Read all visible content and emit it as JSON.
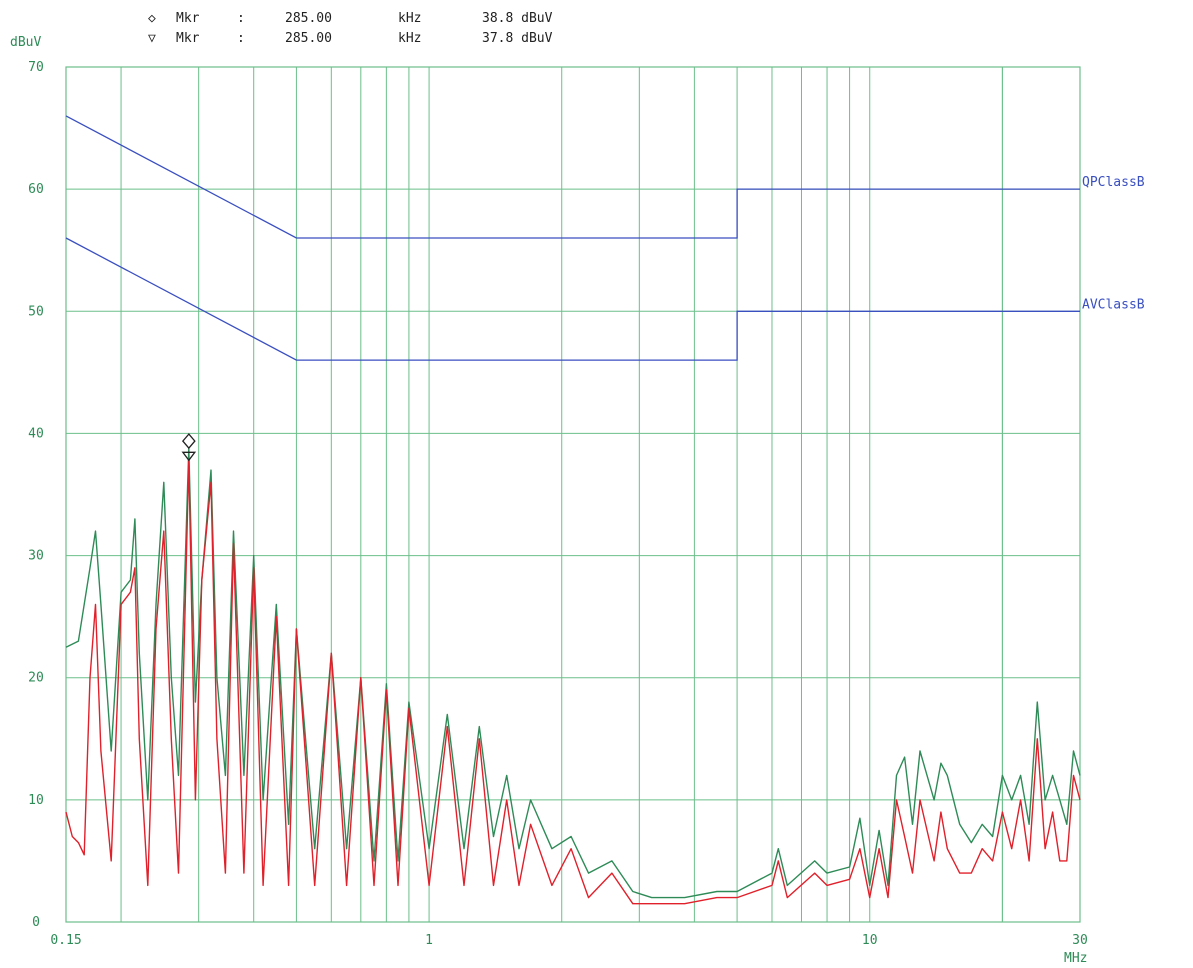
{
  "colors": {
    "grid": "#6bbf8a",
    "tick_text": "#2e8b57",
    "limit": "#3a4fc0",
    "qp_trace": "#2e8b57",
    "av_trace": "#e0202a",
    "marker_text": "#222222"
  },
  "markers": [
    {
      "symbol": "◇",
      "label": "Mkr",
      "sep": ":",
      "freq": "285.00",
      "freq_unit": "kHz",
      "level": "38.8 dBuV"
    },
    {
      "symbol": "▽",
      "label": "Mkr",
      "sep": ":",
      "freq": "285.00",
      "freq_unit": "kHz",
      "level": "37.8 dBuV"
    }
  ],
  "chart_data": {
    "type": "line",
    "ylabel": "dBuV",
    "xunit": "MHz",
    "x_scale": "log",
    "xlim": [
      0.15,
      30
    ],
    "ylim": [
      0,
      70
    ],
    "yticks": [
      0,
      10,
      20,
      30,
      40,
      50,
      60,
      70
    ],
    "xtick_labels": [
      {
        "value": 0.15,
        "label": "0.15"
      },
      {
        "value": 1,
        "label": "1"
      },
      {
        "value": 10,
        "label": "10"
      },
      {
        "value": 30,
        "label": "30"
      }
    ],
    "grid": true,
    "limit_lines": [
      {
        "name": "QPClassB",
        "points": [
          [
            0.15,
            66
          ],
          [
            0.5,
            56
          ],
          [
            5,
            56
          ],
          [
            5,
            60
          ],
          [
            30,
            60
          ]
        ]
      },
      {
        "name": "AVClassB",
        "points": [
          [
            0.15,
            56
          ],
          [
            0.5,
            46
          ],
          [
            5,
            46
          ],
          [
            5,
            50
          ],
          [
            30,
            50
          ]
        ]
      }
    ],
    "marker_points": [
      {
        "x": 0.285,
        "y": 38.8,
        "symbol": "diamond"
      },
      {
        "x": 0.285,
        "y": 37.8,
        "symbol": "triangle-down"
      }
    ],
    "series": [
      {
        "trace": "qp",
        "points": [
          [
            0.15,
            22.5
          ],
          [
            0.16,
            23
          ],
          [
            0.17,
            29
          ],
          [
            0.175,
            32
          ],
          [
            0.18,
            26
          ],
          [
            0.19,
            14
          ],
          [
            0.2,
            27
          ],
          [
            0.21,
            28
          ],
          [
            0.215,
            33
          ],
          [
            0.22,
            22
          ],
          [
            0.23,
            10
          ],
          [
            0.24,
            26
          ],
          [
            0.25,
            36
          ],
          [
            0.26,
            20
          ],
          [
            0.27,
            12
          ],
          [
            0.285,
            38.8
          ],
          [
            0.295,
            18
          ],
          [
            0.305,
            28
          ],
          [
            0.32,
            37
          ],
          [
            0.33,
            20
          ],
          [
            0.345,
            12
          ],
          [
            0.36,
            32
          ],
          [
            0.38,
            12
          ],
          [
            0.4,
            30
          ],
          [
            0.42,
            10
          ],
          [
            0.45,
            26
          ],
          [
            0.48,
            8
          ],
          [
            0.5,
            24
          ],
          [
            0.55,
            6
          ],
          [
            0.6,
            22
          ],
          [
            0.65,
            6
          ],
          [
            0.7,
            20
          ],
          [
            0.75,
            5
          ],
          [
            0.8,
            19.5
          ],
          [
            0.85,
            5
          ],
          [
            0.9,
            18
          ],
          [
            1.0,
            6
          ],
          [
            1.1,
            17
          ],
          [
            1.2,
            6
          ],
          [
            1.3,
            16
          ],
          [
            1.4,
            7
          ],
          [
            1.5,
            12
          ],
          [
            1.6,
            6
          ],
          [
            1.7,
            10
          ],
          [
            1.9,
            6
          ],
          [
            2.1,
            7
          ],
          [
            2.3,
            4
          ],
          [
            2.6,
            5
          ],
          [
            2.9,
            2.5
          ],
          [
            3.2,
            2
          ],
          [
            3.8,
            2
          ],
          [
            4.5,
            2.5
          ],
          [
            5,
            2.5
          ],
          [
            6,
            4
          ],
          [
            6.2,
            6
          ],
          [
            6.5,
            3
          ],
          [
            7.5,
            5
          ],
          [
            8,
            4
          ],
          [
            9,
            4.5
          ],
          [
            9.5,
            8.5
          ],
          [
            10,
            3
          ],
          [
            10.5,
            7.5
          ],
          [
            11,
            3
          ],
          [
            11.5,
            12
          ],
          [
            12,
            13.5
          ],
          [
            12.5,
            8
          ],
          [
            13,
            14
          ],
          [
            14,
            10
          ],
          [
            14.5,
            13
          ],
          [
            15,
            12
          ],
          [
            16,
            8
          ],
          [
            17,
            6.5
          ],
          [
            18,
            8
          ],
          [
            19,
            7
          ],
          [
            20,
            12
          ],
          [
            21,
            10
          ],
          [
            22,
            12
          ],
          [
            23,
            8
          ],
          [
            24,
            18
          ],
          [
            25,
            10
          ],
          [
            26,
            12
          ],
          [
            27,
            10
          ],
          [
            28,
            8
          ],
          [
            29,
            14
          ],
          [
            30,
            12
          ]
        ]
      },
      {
        "trace": "av",
        "points": [
          [
            0.15,
            9
          ],
          [
            0.155,
            7
          ],
          [
            0.16,
            6.5
          ],
          [
            0.165,
            5.5
          ],
          [
            0.17,
            20
          ],
          [
            0.175,
            26
          ],
          [
            0.18,
            14
          ],
          [
            0.19,
            5
          ],
          [
            0.2,
            26
          ],
          [
            0.21,
            27
          ],
          [
            0.215,
            29
          ],
          [
            0.22,
            15
          ],
          [
            0.23,
            3
          ],
          [
            0.24,
            24
          ],
          [
            0.25,
            32
          ],
          [
            0.26,
            15
          ],
          [
            0.27,
            4
          ],
          [
            0.285,
            37.8
          ],
          [
            0.295,
            10
          ],
          [
            0.305,
            28
          ],
          [
            0.32,
            36
          ],
          [
            0.33,
            15
          ],
          [
            0.345,
            4
          ],
          [
            0.36,
            31
          ],
          [
            0.38,
            4
          ],
          [
            0.4,
            29
          ],
          [
            0.42,
            3
          ],
          [
            0.45,
            25
          ],
          [
            0.48,
            3
          ],
          [
            0.5,
            24
          ],
          [
            0.55,
            3
          ],
          [
            0.6,
            22
          ],
          [
            0.65,
            3
          ],
          [
            0.7,
            20
          ],
          [
            0.75,
            3
          ],
          [
            0.8,
            19
          ],
          [
            0.85,
            3
          ],
          [
            0.9,
            17.5
          ],
          [
            1.0,
            3
          ],
          [
            1.1,
            16
          ],
          [
            1.2,
            3
          ],
          [
            1.3,
            15
          ],
          [
            1.4,
            3
          ],
          [
            1.5,
            10
          ],
          [
            1.6,
            3
          ],
          [
            1.7,
            8
          ],
          [
            1.9,
            3
          ],
          [
            2.1,
            6
          ],
          [
            2.3,
            2
          ],
          [
            2.6,
            4
          ],
          [
            2.9,
            1.5
          ],
          [
            3.2,
            1.5
          ],
          [
            3.8,
            1.5
          ],
          [
            4.5,
            2
          ],
          [
            5,
            2
          ],
          [
            6,
            3
          ],
          [
            6.2,
            5
          ],
          [
            6.5,
            2
          ],
          [
            7.5,
            4
          ],
          [
            8,
            3
          ],
          [
            9,
            3.5
          ],
          [
            9.5,
            6
          ],
          [
            10,
            2
          ],
          [
            10.5,
            6
          ],
          [
            11,
            2
          ],
          [
            11.5,
            10
          ],
          [
            12,
            7
          ],
          [
            12.5,
            4
          ],
          [
            13,
            10
          ],
          [
            14,
            5
          ],
          [
            14.5,
            9
          ],
          [
            15,
            6
          ],
          [
            16,
            4
          ],
          [
            17,
            4
          ],
          [
            18,
            6
          ],
          [
            19,
            5
          ],
          [
            20,
            9
          ],
          [
            21,
            6
          ],
          [
            22,
            10
          ],
          [
            23,
            5
          ],
          [
            24,
            15
          ],
          [
            25,
            6
          ],
          [
            26,
            9
          ],
          [
            27,
            5
          ],
          [
            28,
            5
          ],
          [
            29,
            12
          ],
          [
            30,
            10
          ]
        ]
      }
    ]
  }
}
